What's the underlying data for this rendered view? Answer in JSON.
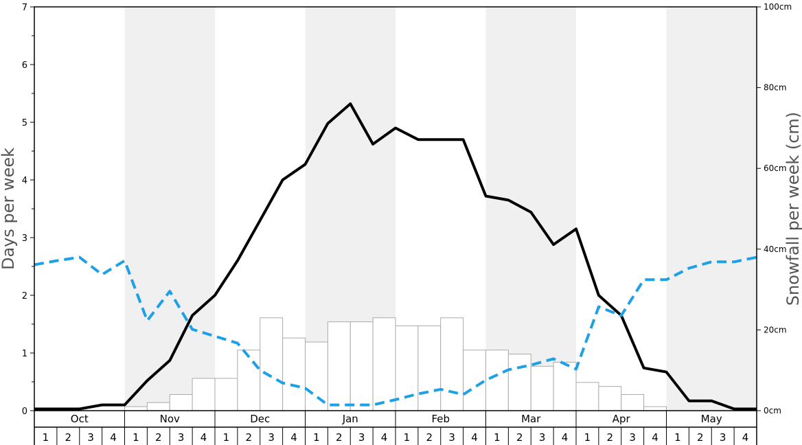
{
  "chart_data": {
    "type": "bar",
    "xlabel": "",
    "ylabel": "Days per week",
    "ylabel_right": "Snowfall per week (cm)",
    "ylim": [
      0,
      7
    ],
    "ylim_right": [
      0,
      100
    ],
    "left_ticks": [
      "0",
      "1",
      "2",
      "3",
      "4",
      "5",
      "6",
      "7"
    ],
    "right_ticks": [
      "0cm",
      "20cm",
      "40cm",
      "60cm",
      "80cm",
      "100cm"
    ],
    "months": [
      "Oct",
      "Nov",
      "Dec",
      "Jan",
      "Feb",
      "Mar",
      "Apr",
      "May"
    ],
    "week_labels": [
      "1",
      "2",
      "3",
      "4"
    ],
    "shaded_months": [
      "Nov",
      "Jan",
      "Mar",
      "May"
    ],
    "colors": {
      "shade": "#f0f0f0",
      "bar_fill": "#ffffff",
      "bar_stroke": "#aaaaaa",
      "solid_line": "#000000",
      "dashed_line": "#1ea0e6"
    },
    "series": [
      {
        "kind": "bar",
        "axis": "right",
        "values": [
          0,
          0,
          0,
          0,
          1,
          2,
          4,
          8,
          8,
          15,
          23,
          18,
          17,
          22,
          22,
          23,
          21,
          21,
          23,
          15,
          15,
          14,
          11,
          12,
          7,
          6,
          4,
          1,
          0,
          0,
          0,
          0
        ]
      },
      {
        "kind": "line",
        "style": "solid",
        "axis": "left",
        "values": [
          0.03,
          0.03,
          0.03,
          0.1,
          0.1,
          0.52,
          0.87,
          1.65,
          2.0,
          2.6,
          3.3,
          4.0,
          4.27,
          4.98,
          5.32,
          4.62,
          4.9,
          4.7,
          4.7,
          4.7,
          3.72,
          3.65,
          3.44,
          2.88,
          3.15,
          2.0,
          1.65,
          0.74,
          0.67,
          0.17,
          0.17,
          0.03,
          0.03
        ]
      },
      {
        "kind": "line",
        "style": "dashed",
        "axis": "left",
        "values": [
          2.53,
          2.6,
          2.66,
          2.36,
          2.6,
          1.56,
          2.07,
          1.41,
          1.29,
          1.17,
          0.7,
          0.48,
          0.39,
          0.1,
          0.1,
          0.1,
          0.19,
          0.29,
          0.37,
          0.28,
          0.53,
          0.71,
          0.79,
          0.9,
          0.72,
          1.8,
          1.65,
          2.27,
          2.27,
          2.47,
          2.58,
          2.58,
          2.66
        ]
      }
    ]
  }
}
